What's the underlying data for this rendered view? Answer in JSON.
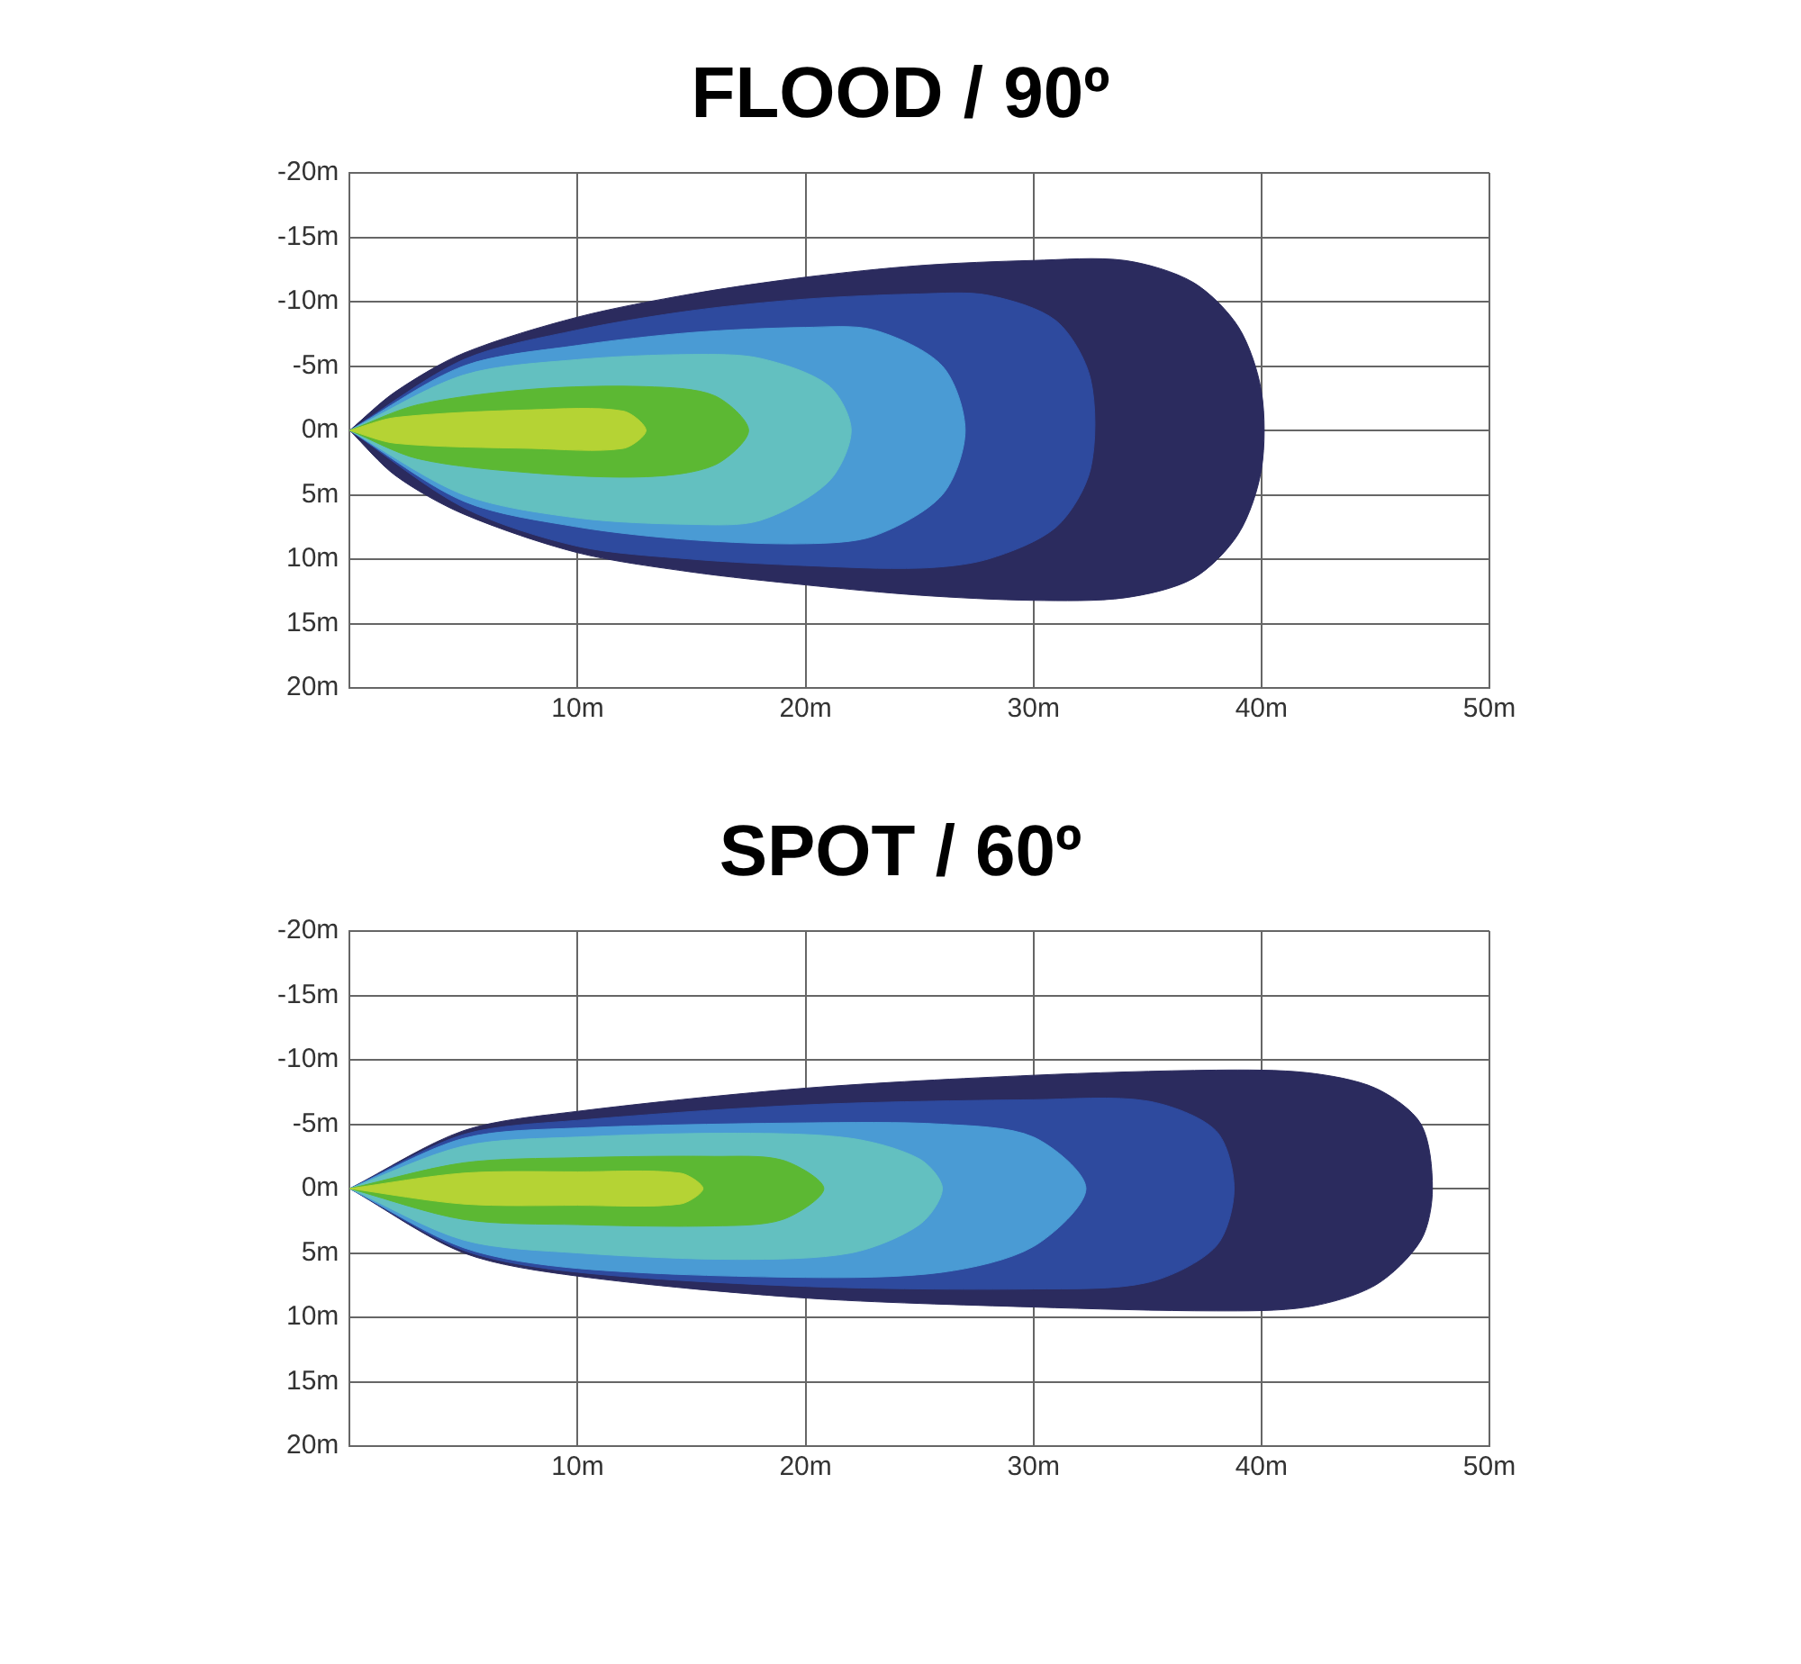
{
  "chart_data": [
    {
      "type": "area",
      "title": "FLOOD / 90º",
      "xlim": [
        0,
        50
      ],
      "ylim": [
        20,
        -20
      ],
      "grid": true,
      "legend": false,
      "marker": "none",
      "xticks": [
        {
          "value": 0,
          "label": null
        },
        {
          "value": 10,
          "label": "10m"
        },
        {
          "value": 20,
          "label": "20m"
        },
        {
          "value": 30,
          "label": "30m"
        },
        {
          "value": 40,
          "label": "40m"
        },
        {
          "value": 50,
          "label": "50m"
        }
      ],
      "yticks": [
        {
          "value": -20,
          "label": "-20m"
        },
        {
          "value": -15,
          "label": "-15m"
        },
        {
          "value": -10,
          "label": "-10m"
        },
        {
          "value": -5,
          "label": "-5m"
        },
        {
          "value": 0,
          "label": "0m"
        },
        {
          "value": 5,
          "label": "5m"
        },
        {
          "value": 10,
          "label": "10m"
        },
        {
          "value": 15,
          "label": "15m"
        },
        {
          "value": 20,
          "label": "20m"
        }
      ],
      "series": [
        {
          "color": "#2b2b5e",
          "x": [
            0,
            2,
            5,
            10,
            15,
            20,
            25,
            30,
            34,
            37,
            39,
            40,
            40,
            39,
            37,
            34,
            30,
            25,
            20,
            15,
            10,
            5,
            2,
            0
          ],
          "values": [
            0,
            -3,
            -6,
            -8.8,
            -10.6,
            -11.9,
            -12.8,
            -13.2,
            -13.2,
            -11.5,
            -8,
            -3,
            3,
            8,
            11.5,
            13,
            13.2,
            12.8,
            12,
            11,
            9.5,
            6.5,
            3.5,
            0
          ]
        },
        {
          "color": "#2e4a9e",
          "x": [
            0,
            5,
            10,
            15,
            20,
            25,
            28,
            31,
            32.5,
            32.5,
            31,
            28,
            25,
            20,
            15,
            10,
            5,
            0
          ],
          "values": [
            0,
            -5.5,
            -7.8,
            -9.3,
            -10.2,
            -10.6,
            -10.5,
            -8.5,
            -4,
            3,
            7.5,
            10,
            10.7,
            10.5,
            10,
            9,
            6,
            0
          ]
        },
        {
          "color": "#4a9bd4",
          "x": [
            0,
            5,
            10,
            15,
            20,
            23,
            26,
            27,
            26,
            23,
            20,
            15,
            10,
            5,
            0
          ],
          "values": [
            0,
            -5,
            -6.6,
            -7.6,
            -8,
            -7.8,
            -5,
            0,
            5,
            8.2,
            8.8,
            8.5,
            7.5,
            5.5,
            0
          ]
        },
        {
          "color": "#63c0c0",
          "x": [
            0,
            5,
            10,
            15,
            18,
            21,
            22,
            21,
            18,
            15,
            10,
            5,
            0
          ],
          "values": [
            0,
            -4.3,
            -5.5,
            -5.9,
            -5.6,
            -3.5,
            0,
            4,
            7,
            7.3,
            6.8,
            5,
            0
          ]
        },
        {
          "color": "#5cb833",
          "x": [
            0,
            3,
            8,
            13,
            16,
            17.5,
            16,
            13,
            8,
            3,
            0
          ],
          "values": [
            0,
            -2,
            -3.2,
            -3.4,
            -2.7,
            0,
            2.7,
            3.6,
            3.3,
            2.2,
            0
          ]
        },
        {
          "color": "#b5d334",
          "x": [
            0,
            2,
            8,
            12,
            13,
            12,
            8,
            2,
            0
          ],
          "values": [
            0,
            -1,
            -1.6,
            -1.5,
            0,
            1.4,
            1.4,
            1,
            0
          ]
        }
      ]
    },
    {
      "type": "area",
      "title": "SPOT / 60º",
      "xlim": [
        0,
        50
      ],
      "ylim": [
        20,
        -20
      ],
      "grid": true,
      "legend": false,
      "marker": "none",
      "xticks": [
        {
          "value": 0,
          "label": null
        },
        {
          "value": 10,
          "label": "10m"
        },
        {
          "value": 20,
          "label": "20m"
        },
        {
          "value": 30,
          "label": "30m"
        },
        {
          "value": 40,
          "label": "40m"
        },
        {
          "value": 50,
          "label": "50m"
        }
      ],
      "yticks": [
        {
          "value": -20,
          "label": "-20m"
        },
        {
          "value": -15,
          "label": "-15m"
        },
        {
          "value": -10,
          "label": "-10m"
        },
        {
          "value": -5,
          "label": "-5m"
        },
        {
          "value": 0,
          "label": "0m"
        },
        {
          "value": 5,
          "label": "5m"
        },
        {
          "value": 10,
          "label": "10m"
        },
        {
          "value": 15,
          "label": "15m"
        },
        {
          "value": 20,
          "label": "20m"
        }
      ],
      "series": [
        {
          "color": "#2b2b5e",
          "x": [
            0,
            5,
            10,
            20,
            30,
            38,
            42,
            45,
            47,
            47.5,
            47,
            45,
            42,
            38,
            30,
            20,
            10,
            5,
            0
          ],
          "values": [
            0,
            -4.5,
            -6,
            -7.8,
            -8.8,
            -9.2,
            -9,
            -7.8,
            -5,
            0,
            4,
            7.5,
            9.2,
            9.5,
            9.2,
            8.5,
            6.8,
            5,
            0
          ]
        },
        {
          "color": "#2e4a9e",
          "x": [
            0,
            5,
            10,
            20,
            30,
            35,
            38,
            38.8,
            38,
            35,
            30,
            20,
            10,
            5,
            0
          ],
          "values": [
            0,
            -4.2,
            -5.3,
            -6.5,
            -6.9,
            -6.8,
            -4.5,
            0,
            4.5,
            7.3,
            7.8,
            7.6,
            6.5,
            4.8,
            0
          ]
        },
        {
          "color": "#4a9bd4",
          "x": [
            0,
            5,
            10,
            20,
            26,
            30,
            32.3,
            30,
            26,
            20,
            10,
            5,
            0
          ],
          "values": [
            0,
            -3.9,
            -4.7,
            -5.1,
            -5,
            -4,
            0,
            4.5,
            6.5,
            6.9,
            6.2,
            4.6,
            0
          ]
        },
        {
          "color": "#63c0c0",
          "x": [
            0,
            5,
            10,
            17,
            22,
            25,
            26,
            25,
            22,
            17,
            10,
            5,
            0
          ],
          "values": [
            0,
            -3.3,
            -4,
            -4.3,
            -3.9,
            -2.3,
            0,
            2.8,
            5,
            5.5,
            5,
            4,
            0
          ]
        },
        {
          "color": "#5cb833",
          "x": [
            0,
            5,
            10,
            16,
            19,
            20.8,
            19,
            16,
            10,
            5,
            0
          ],
          "values": [
            0,
            -2,
            -2.4,
            -2.5,
            -2.2,
            0,
            2.4,
            2.9,
            2.8,
            2.4,
            0
          ]
        },
        {
          "color": "#b5d334",
          "x": [
            0,
            5,
            10,
            14.5,
            15.5,
            14.5,
            10,
            5,
            0
          ],
          "values": [
            0,
            -1.2,
            -1.3,
            -1.2,
            0,
            1.2,
            1.3,
            1.2,
            0
          ]
        }
      ]
    }
  ]
}
